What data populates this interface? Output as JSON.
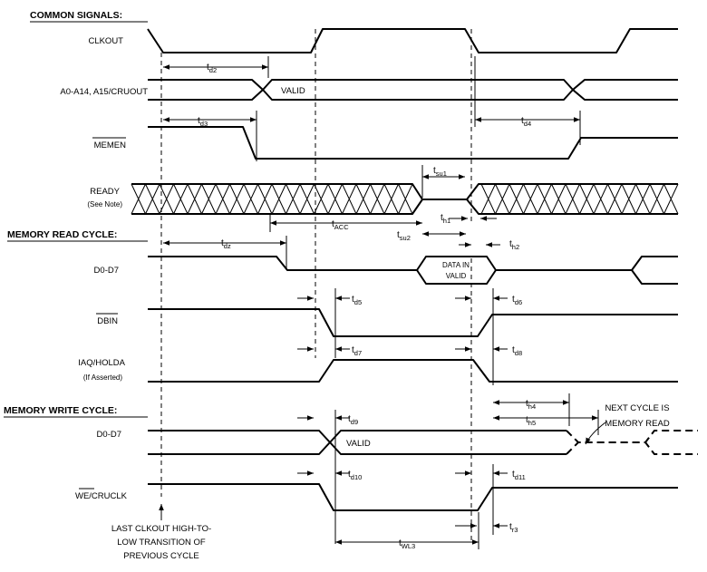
{
  "sections": {
    "common": "COMMON SIGNALS:",
    "read": "MEMORY READ CYCLE:",
    "write": "MEMORY WRITE CYCLE:"
  },
  "signals": {
    "clkout": "CLKOUT",
    "address": "A0-A14, A15/CRUOUT",
    "memen": "MEMEN",
    "ready": "READY",
    "ready_note": "(See Note)",
    "d0d7_read": "D0-D7",
    "dbin": "DBIN",
    "iaq": "IAQ/HOLDA",
    "iaq_note": "(If Asserted)",
    "d0d7_write": "D0-D7",
    "we": "WE/CRUCLK"
  },
  "values": {
    "addr_valid": "VALID",
    "data_in_1": "DATA IN",
    "data_in_2": "VALID",
    "write_valid": "VALID"
  },
  "params": {
    "td2": {
      "main": "t",
      "sub": "d2"
    },
    "td3": {
      "main": "t",
      "sub": "d3"
    },
    "td4": {
      "main": "t",
      "sub": "d4"
    },
    "tsu1": {
      "main": "t",
      "sub": "su1"
    },
    "th1": {
      "main": "t",
      "sub": "h1"
    },
    "tacc": {
      "main": "t",
      "sub": "ACC"
    },
    "tsu2": {
      "main": "t",
      "sub": "su2"
    },
    "tdz": {
      "main": "t",
      "sub": "dz"
    },
    "th2": {
      "main": "t",
      "sub": "h2"
    },
    "td5": {
      "main": "t",
      "sub": "d5"
    },
    "td6": {
      "main": "t",
      "sub": "d6"
    },
    "td7": {
      "main": "t",
      "sub": "d7"
    },
    "td8": {
      "main": "t",
      "sub": "d8"
    },
    "th4": {
      "main": "t",
      "sub": "h4"
    },
    "th5": {
      "main": "t",
      "sub": "h5"
    },
    "td9": {
      "main": "t",
      "sub": "d9"
    },
    "td10": {
      "main": "t",
      "sub": "d10"
    },
    "td11": {
      "main": "t",
      "sub": "d11"
    },
    "tr3": {
      "main": "t",
      "sub": "r3"
    },
    "twl3": {
      "main": "t",
      "sub": "WL3"
    }
  },
  "notes": {
    "next_cycle_1": "NEXT CYCLE IS",
    "next_cycle_2": "MEMORY READ",
    "last_1": "LAST CLKOUT HIGH-TO-",
    "last_2": "LOW TRANSITION OF",
    "last_3": "PREVIOUS CYCLE"
  }
}
